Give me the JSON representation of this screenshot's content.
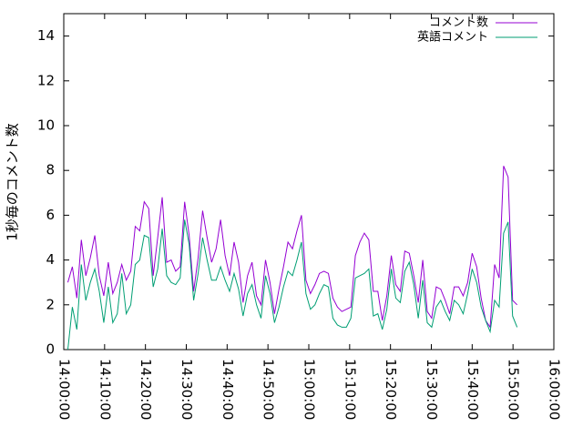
{
  "chart_data": {
    "type": "line",
    "ylabel": "1秒毎のコメント数",
    "xlim": [
      "14:00:00",
      "16:00:00"
    ],
    "xticks": [
      "14:00:00",
      "14:10:00",
      "14:20:00",
      "14:30:00",
      "14:40:00",
      "14:50:00",
      "15:00:00",
      "15:10:00",
      "15:20:00",
      "15:30:00",
      "15:40:00",
      "15:50:00",
      "16:00:00"
    ],
    "ylim": [
      0,
      15
    ],
    "yticks": [
      0,
      2,
      4,
      6,
      8,
      10,
      12,
      14
    ],
    "legend": "top right",
    "x": [
      "14:01:00",
      "14:02:06",
      "14:03:12",
      "14:04:18",
      "14:05:24",
      "14:06:30",
      "14:07:36",
      "14:08:42",
      "14:09:48",
      "14:10:54",
      "14:12:00",
      "14:13:06",
      "14:14:12",
      "14:15:18",
      "14:16:24",
      "14:17:30",
      "14:18:36",
      "14:19:42",
      "14:20:48",
      "14:21:54",
      "14:23:00",
      "14:24:06",
      "14:25:12",
      "14:26:18",
      "14:27:24",
      "14:28:30",
      "14:29:36",
      "14:30:42",
      "14:31:48",
      "14:32:54",
      "14:34:00",
      "14:35:06",
      "14:36:12",
      "14:37:18",
      "14:38:24",
      "14:39:30",
      "14:40:36",
      "14:41:42",
      "14:42:48",
      "14:43:54",
      "14:45:00",
      "14:46:06",
      "14:47:12",
      "14:48:18",
      "14:49:24",
      "14:50:30",
      "14:51:36",
      "14:52:42",
      "14:53:48",
      "14:54:54",
      "14:56:00",
      "14:57:06",
      "14:58:12",
      "14:59:18",
      "15:00:24",
      "15:01:30",
      "15:02:36",
      "15:03:42",
      "15:04:48",
      "15:05:54",
      "15:07:00",
      "15:08:06",
      "15:09:12",
      "15:10:18",
      "15:11:24",
      "15:12:30",
      "15:13:36",
      "15:14:42",
      "15:15:48",
      "15:16:54",
      "15:18:00",
      "15:19:06",
      "15:20:12",
      "15:21:18",
      "15:22:24",
      "15:23:30",
      "15:24:36",
      "15:25:42",
      "15:26:48",
      "15:27:54",
      "15:29:00",
      "15:30:06",
      "15:31:12",
      "15:32:18",
      "15:33:24",
      "15:34:30",
      "15:35:36",
      "15:36:42",
      "15:37:48",
      "15:38:54",
      "15:40:00",
      "15:41:06",
      "15:42:12",
      "15:43:18",
      "15:44:24",
      "15:45:30",
      "15:46:36",
      "15:47:42",
      "15:48:48",
      "15:49:54",
      "15:51:00"
    ],
    "series": [
      {
        "name": "コメント数",
        "color": "#9400d3",
        "values": [
          3.0,
          3.7,
          2.3,
          4.9,
          3.3,
          4.1,
          5.1,
          3.3,
          2.4,
          3.9,
          2.5,
          3.0,
          3.8,
          3.1,
          3.5,
          5.5,
          5.3,
          6.6,
          6.3,
          3.3,
          5.0,
          6.8,
          3.9,
          4.0,
          3.5,
          3.7,
          6.6,
          5.1,
          2.6,
          4.1,
          6.2,
          5.0,
          3.9,
          4.5,
          5.8,
          4.2,
          3.3,
          4.8,
          3.9,
          2.1,
          3.3,
          3.9,
          2.4,
          2.0,
          4.0,
          3.0,
          1.6,
          2.7,
          3.7,
          4.8,
          4.5,
          5.3,
          6.0,
          3.1,
          2.5,
          2.9,
          3.4,
          3.5,
          3.4,
          2.3,
          1.9,
          1.7,
          1.8,
          1.9,
          4.2,
          4.8,
          5.2,
          4.9,
          2.6,
          2.6,
          1.3,
          2.4,
          4.2,
          2.9,
          2.6,
          4.4,
          4.3,
          3.3,
          2.1,
          4.0,
          1.7,
          1.4,
          2.8,
          2.7,
          2.2,
          1.6,
          2.8,
          2.8,
          2.4,
          3.0,
          4.3,
          3.7,
          2.3,
          1.3,
          1.0,
          3.8,
          3.2,
          8.2,
          7.7,
          2.2,
          2.0
        ]
      },
      {
        "name": "英語コメント",
        "color": "#009e73",
        "values": [
          0,
          1.9,
          0.9,
          3.8,
          2.2,
          3.0,
          3.6,
          2.6,
          1.2,
          2.8,
          1.2,
          1.6,
          3.4,
          1.6,
          2.0,
          3.8,
          4.0,
          5.1,
          5.0,
          2.8,
          3.6,
          5.4,
          3.3,
          3.0,
          2.9,
          3.2,
          5.8,
          4.7,
          2.2,
          3.4,
          5.0,
          4.0,
          3.1,
          3.1,
          3.7,
          3.1,
          2.6,
          3.4,
          2.7,
          1.5,
          2.5,
          2.9,
          2.0,
          1.4,
          3.3,
          2.5,
          1.2,
          1.9,
          2.8,
          3.5,
          3.3,
          4.0,
          4.8,
          2.5,
          1.8,
          2.0,
          2.5,
          2.9,
          2.8,
          1.4,
          1.1,
          1.0,
          1.0,
          1.4,
          3.2,
          3.3,
          3.4,
          3.6,
          1.5,
          1.6,
          0.9,
          1.8,
          3.6,
          2.3,
          2.1,
          3.5,
          3.9,
          2.9,
          1.4,
          3.1,
          1.2,
          1.0,
          1.9,
          2.2,
          1.7,
          1.3,
          2.2,
          2.0,
          1.6,
          2.5,
          3.6,
          3.0,
          1.9,
          1.3,
          0.8,
          2.2,
          1.9,
          5.2,
          5.7,
          1.5,
          1.0
        ]
      }
    ]
  }
}
